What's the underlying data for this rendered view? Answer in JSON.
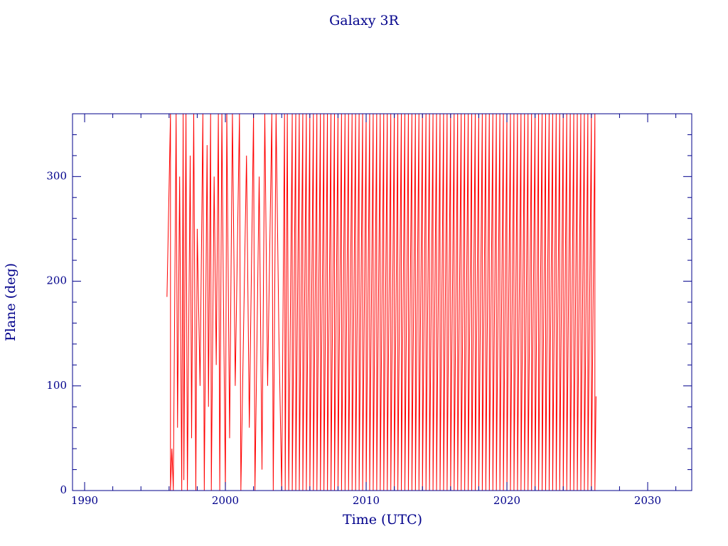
{
  "chart_data": {
    "type": "line",
    "title": "Galaxy 3R",
    "x_label": "Time (UTC)",
    "y_label": "Plane (deg)",
    "color": "#ff0000",
    "axis_color": "#00008b",
    "xlim": [
      1989.14,
      2033.13
    ],
    "ylim": [
      0,
      360
    ],
    "xticks": [
      1990,
      2000,
      2010,
      2020,
      2030
    ],
    "xminorticks": [
      1992,
      1994,
      1996,
      1998,
      2002,
      2004,
      2006,
      2008,
      2012,
      2014,
      2016,
      2018,
      2022,
      2024,
      2026,
      2028,
      2032
    ],
    "yticks": [
      0,
      100,
      200,
      300
    ],
    "yminorticks": [
      20,
      40,
      60,
      80,
      120,
      140,
      160,
      180,
      220,
      240,
      260,
      280,
      320,
      340
    ],
    "x": [
      1995.85,
      1996.1,
      1996.1,
      1996.2,
      1996.3,
      1996.5,
      1996.6,
      1996.75,
      1996.9,
      1997.0,
      1997.05,
      1997.2,
      1997.3,
      1997.5,
      1997.6,
      1997.75,
      1997.9,
      1998.0,
      1998.2,
      1998.4,
      1998.5,
      1998.7,
      1998.8,
      1998.95,
      1999.0,
      1999.2,
      1999.35,
      1999.5,
      1999.6,
      1999.75,
      1999.85,
      2000.0,
      2000.1,
      2000.3,
      2000.5,
      2000.7,
      2001.0,
      2001.1,
      2001.5,
      2001.7,
      2002.0,
      2002.1,
      2002.4,
      2002.6,
      2002.8,
      2003.0,
      2003.3,
      2003.4,
      2003.6,
      2003.8,
      2004.0,
      2004.2,
      2004.25,
      2004.4,
      2004.5,
      2004.75,
      2004.75,
      2005.0,
      2005.0,
      2005.25,
      2005.25,
      2005.5,
      2005.5,
      2005.75,
      2005.75,
      2006.0,
      2006.0,
      2006.25,
      2006.25,
      2006.5,
      2006.5,
      2006.75,
      2006.75,
      2007.0,
      2007.0,
      2007.25,
      2007.25,
      2007.5,
      2007.5,
      2007.75,
      2007.75,
      2008.0,
      2008.0,
      2008.25,
      2008.25,
      2008.5,
      2008.5,
      2008.75,
      2008.75,
      2009.0,
      2009.0,
      2009.25,
      2009.25,
      2009.5,
      2009.5,
      2009.75,
      2009.75,
      2010.0,
      2010.0,
      2010.25,
      2010.25,
      2010.5,
      2010.5,
      2010.75,
      2010.75,
      2011.0,
      2011.0,
      2011.25,
      2011.25,
      2011.5,
      2011.5,
      2011.75,
      2011.75,
      2012.0,
      2012.0,
      2012.25,
      2012.25,
      2012.5,
      2012.5,
      2012.75,
      2012.75,
      2013.0,
      2013.0,
      2013.25,
      2013.25,
      2013.5,
      2013.5,
      2013.75,
      2013.75,
      2014.0,
      2014.0,
      2014.25,
      2014.25,
      2014.5,
      2014.5,
      2014.75,
      2014.75,
      2015.0,
      2015.0,
      2015.25,
      2015.25,
      2015.5,
      2015.5,
      2015.75,
      2015.75,
      2016.0,
      2016.0,
      2016.25,
      2016.25,
      2016.5,
      2016.5,
      2016.75,
      2016.75,
      2017.0,
      2017.0,
      2017.25,
      2017.25,
      2017.5,
      2017.5,
      2017.75,
      2017.75,
      2018.0,
      2018.0,
      2018.25,
      2018.25,
      2018.5,
      2018.5,
      2018.75,
      2018.75,
      2019.0,
      2019.0,
      2019.25,
      2019.25,
      2019.5,
      2019.5,
      2019.75,
      2019.75,
      2020.0,
      2020.0,
      2020.25,
      2020.25,
      2020.5,
      2020.5,
      2020.75,
      2020.75,
      2021.0,
      2021.0,
      2021.25,
      2021.25,
      2021.5,
      2021.5,
      2021.75,
      2021.75,
      2022.0,
      2022.0,
      2022.25,
      2022.25,
      2022.5,
      2022.5,
      2022.75,
      2022.75,
      2023.0,
      2023.0,
      2023.25,
      2023.25,
      2023.5,
      2023.5,
      2023.75,
      2023.75,
      2024.0,
      2024.0,
      2024.25,
      2024.25,
      2024.5,
      2024.5,
      2024.75,
      2024.75,
      2025.0,
      2025.0,
      2025.25,
      2025.25,
      2025.5,
      2025.5,
      2025.75,
      2025.75,
      2026.0,
      2026.0,
      2026.25,
      2026.25,
      2026.33
    ],
    "values": [
      185,
      360,
      0,
      40,
      0,
      360,
      60,
      300,
      0,
      360,
      10,
      360,
      0,
      320,
      50,
      360,
      0,
      250,
      100,
      360,
      0,
      330,
      80,
      360,
      0,
      300,
      120,
      360,
      0,
      360,
      200,
      0,
      360,
      50,
      360,
      100,
      360,
      0,
      320,
      60,
      360,
      0,
      300,
      20,
      360,
      100,
      360,
      0,
      360,
      150,
      0,
      360,
      0,
      360,
      0,
      360,
      0,
      360,
      0,
      360,
      0,
      360,
      0,
      360,
      0,
      360,
      0,
      360,
      0,
      360,
      0,
      360,
      0,
      360,
      0,
      360,
      0,
      360,
      0,
      360,
      0,
      360,
      0,
      360,
      0,
      360,
      0,
      360,
      0,
      360,
      0,
      360,
      0,
      360,
      0,
      360,
      0,
      360,
      0,
      360,
      0,
      360,
      0,
      360,
      0,
      360,
      0,
      360,
      0,
      360,
      0,
      360,
      0,
      360,
      0,
      360,
      0,
      360,
      0,
      360,
      0,
      360,
      0,
      360,
      0,
      360,
      0,
      360,
      0,
      360,
      0,
      360,
      0,
      360,
      0,
      360,
      0,
      360,
      0,
      360,
      0,
      360,
      0,
      360,
      0,
      360,
      0,
      360,
      0,
      360,
      0,
      360,
      0,
      360,
      0,
      360,
      0,
      360,
      0,
      360,
      0,
      360,
      0,
      360,
      0,
      360,
      0,
      360,
      0,
      360,
      0,
      360,
      0,
      360,
      0,
      360,
      0,
      360,
      0,
      360,
      0,
      360,
      0,
      360,
      0,
      360,
      0,
      360,
      0,
      360,
      0,
      360,
      0,
      360,
      0,
      360,
      0,
      360,
      0,
      360,
      0,
      360,
      0,
      360,
      0,
      360,
      0,
      360,
      0,
      360,
      0,
      360,
      0,
      360,
      0,
      360,
      0,
      360,
      0,
      360,
      0,
      360,
      0,
      360,
      0,
      360,
      0,
      360,
      0,
      90
    ]
  }
}
